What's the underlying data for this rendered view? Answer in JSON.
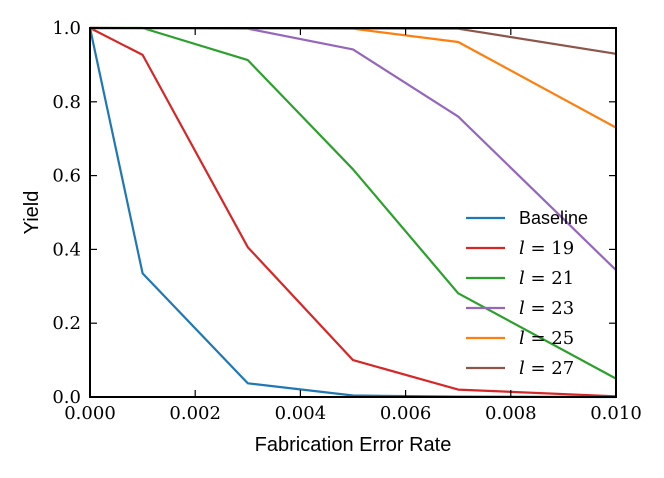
{
  "chart_data": {
    "type": "line",
    "xlabel": "Fabrication Error Rate",
    "ylabel": "Yield",
    "xlim": [
      0.0,
      0.01
    ],
    "ylim": [
      0.0,
      1.0
    ],
    "x_ticks": [
      "0.000",
      "0.002",
      "0.004",
      "0.006",
      "0.008",
      "0.010"
    ],
    "y_ticks": [
      "0.0",
      "0.2",
      "0.4",
      "0.6",
      "0.8",
      "1.0"
    ],
    "grid": false,
    "legend_position": "lower-right",
    "series": [
      {
        "name": "Baseline",
        "color": "#1f77b4",
        "points": [
          [
            0.0,
            1.0
          ],
          [
            0.001,
            0.335
          ],
          [
            0.003,
            0.037
          ],
          [
            0.005,
            0.004
          ],
          [
            0.007,
            0.001
          ],
          [
            0.01,
            0.0
          ]
        ]
      },
      {
        "name": "l = 19",
        "color": "#d62728",
        "points": [
          [
            0.0,
            1.0
          ],
          [
            0.001,
            0.927
          ],
          [
            0.003,
            0.406
          ],
          [
            0.005,
            0.1
          ],
          [
            0.007,
            0.02
          ],
          [
            0.01,
            0.002
          ]
        ]
      },
      {
        "name": "l = 21",
        "color": "#2ca02c",
        "points": [
          [
            0.0,
            1.0
          ],
          [
            0.001,
            1.0
          ],
          [
            0.003,
            0.913
          ],
          [
            0.005,
            0.617
          ],
          [
            0.007,
            0.281
          ],
          [
            0.01,
            0.05
          ]
        ]
      },
      {
        "name": "l = 23",
        "color": "#9467bd",
        "points": [
          [
            0.0,
            1.0
          ],
          [
            0.003,
            0.998
          ],
          [
            0.005,
            0.942
          ],
          [
            0.007,
            0.76
          ],
          [
            0.01,
            0.344
          ]
        ]
      },
      {
        "name": "l = 25",
        "color": "#ff7f0e",
        "points": [
          [
            0.0,
            1.0
          ],
          [
            0.005,
            0.998
          ],
          [
            0.007,
            0.962
          ],
          [
            0.01,
            0.73
          ]
        ]
      },
      {
        "name": "l = 27",
        "color": "#8c564b",
        "points": [
          [
            0.0,
            1.0
          ],
          [
            0.007,
            0.998
          ],
          [
            0.01,
            0.93
          ]
        ]
      }
    ]
  }
}
